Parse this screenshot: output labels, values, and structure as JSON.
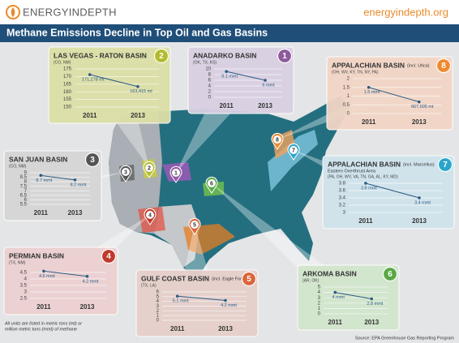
{
  "header": {
    "logo": "ENERGYINDEPTH",
    "url": "energyindepth.org",
    "title": "Methane Emissions Decline in Top Oil and Gas Basins"
  },
  "chart_data": [
    {
      "type": "line",
      "number": "1",
      "title": "ANADARKO BASIN",
      "subtitle": "(OK, TX, KS)",
      "color": "#8e5a9e",
      "categories": [
        "2011",
        "2013"
      ],
      "values": [
        9.1,
        6
      ],
      "value_labels": [
        "9.1 mmt",
        "6 mmt"
      ],
      "ylim": [
        0,
        10
      ],
      "yticks": [
        0,
        2,
        4,
        6,
        8,
        10
      ]
    },
    {
      "type": "line",
      "number": "2",
      "title": "LAS VEGAS - RATON BASIN",
      "subtitle": "(CO, NM)",
      "color": "#b3bb2c",
      "categories": [
        "2011",
        "2013"
      ],
      "values": [
        171.278,
        163.415
      ],
      "value_labels": [
        "171,278 mt",
        "163,415 mt"
      ],
      "ylim": [
        150,
        175
      ],
      "yticks": [
        150,
        155,
        160,
        165,
        170,
        175
      ]
    },
    {
      "type": "line",
      "number": "3",
      "title": "SAN JUAN BASIN",
      "subtitle": "(CO, NM)",
      "color": "#555555",
      "categories": [
        "2011",
        "2013"
      ],
      "values": [
        8.7,
        8.2
      ],
      "value_labels": [
        "8.7 mmt",
        "8.2 mmt"
      ],
      "ylim": [
        5.5,
        9
      ],
      "yticks": [
        5.5,
        6,
        6.5,
        7,
        7.5,
        8,
        8.5,
        9
      ]
    },
    {
      "type": "line",
      "number": "4",
      "title": "PERMIAN BASIN",
      "subtitle": "(TX, NM)",
      "color": "#c0392b",
      "categories": [
        "2011",
        "2013"
      ],
      "values": [
        4.6,
        4.2
      ],
      "value_labels": [
        "4.6 mmt",
        "4.2 mmt"
      ],
      "ylim": [
        2.5,
        4.75
      ],
      "yticks": [
        2.5,
        3,
        3.5,
        4,
        4.5
      ]
    },
    {
      "type": "line",
      "number": "5",
      "title": "GULF COAST BASIN",
      "note": "(incl. Eagle Ford)",
      "subtitle": "(TX, LA)",
      "color": "#d9653b",
      "categories": [
        "2011",
        "2013"
      ],
      "values": [
        5.1,
        4.2
      ],
      "value_labels": [
        "5.1 mmt",
        "4.2 mmt"
      ],
      "ylim": [
        0,
        6
      ],
      "yticks": [
        0,
        1,
        2,
        3,
        4,
        5,
        6
      ]
    },
    {
      "type": "line",
      "number": "6",
      "title": "ARKOMA BASIN",
      "subtitle": "(AR, OK)",
      "color": "#5aa845",
      "categories": [
        "2011",
        "2013"
      ],
      "values": [
        4,
        2.8
      ],
      "value_labels": [
        "4 mmt",
        "2.8 mmt"
      ],
      "ylim": [
        0,
        5
      ],
      "yticks": [
        0,
        1,
        2,
        3,
        4,
        5
      ]
    },
    {
      "type": "line",
      "number": "7",
      "title": "APPALACHIAN BASIN",
      "note": "(incl. Marcellus)",
      "description": "Eastern Overthrust Area",
      "subtitle": "(PA, OH, WV, VA, TN, GA, AL, KY, MD)",
      "color": "#2aa5c9",
      "categories": [
        "2011",
        "2013"
      ],
      "values": [
        3.8,
        3.4
      ],
      "value_labels": [
        "3.8 mmt",
        "3.4 mmt"
      ],
      "ylim": [
        3,
        3.8
      ],
      "yticks": [
        3,
        3.2,
        3.4,
        3.6,
        3.8
      ]
    },
    {
      "type": "line",
      "number": "8",
      "title": "APPALACHIAN BASIN",
      "note": "(incl. Utica)",
      "subtitle": "(OH, WV, KY, TN, NY, PA)",
      "color": "#ee8a2e",
      "categories": [
        "2011",
        "2013"
      ],
      "values": [
        1.5,
        0.667605
      ],
      "value_labels": [
        "1.5 mmt",
        "667,605 mt"
      ],
      "ylim": [
        0,
        2
      ],
      "yticks": [
        0,
        0.5,
        1,
        1.5,
        2
      ]
    }
  ],
  "footnote": [
    "All units are listed in metric tons (mt) or",
    "million metric tons (mmt) of methane"
  ],
  "source": "Source: EPA Greenhouse Gas Reporting Program"
}
